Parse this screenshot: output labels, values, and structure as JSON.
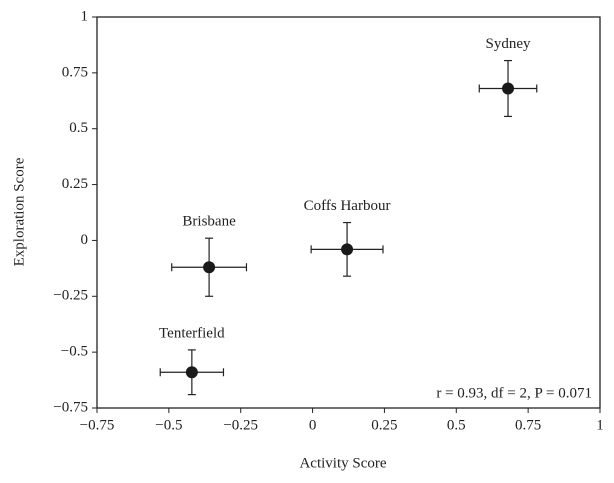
{
  "chart_data": {
    "type": "scatter",
    "xlabel": "Activity Score",
    "ylabel": "Exploration Score",
    "labels": [
      "Sydney",
      "Coffs Harbour",
      "Brisbane",
      "Tenterfield"
    ],
    "x": [
      0.68,
      0.12,
      -0.36,
      -0.42
    ],
    "values": [
      0.68,
      -0.04,
      -0.12,
      -0.59
    ],
    "xerr": [
      0.1,
      0.125,
      0.13,
      0.11
    ],
    "yerr": [
      0.125,
      0.12,
      0.13,
      0.1
    ],
    "color": "#1a1a1a",
    "annotation": "r = 0.93, df = 2, P = 0.071",
    "xlim": [
      -0.75,
      1
    ],
    "ylim": [
      -0.75,
      1
    ],
    "xticks": [
      {
        "value": -0.75,
        "label": "−0.75"
      },
      {
        "value": -0.5,
        "label": "−0.5"
      },
      {
        "value": -0.25,
        "label": "−0.25"
      },
      0,
      0.25,
      0.5,
      0.75,
      1
    ],
    "yticks": [
      {
        "value": -0.75,
        "label": "−0.75"
      },
      {
        "value": -0.5,
        "label": "−0.5"
      },
      {
        "value": -0.25,
        "label": "−0.25"
      },
      0,
      0.25,
      0.5,
      0.75,
      1
    ],
    "grid": false
  }
}
